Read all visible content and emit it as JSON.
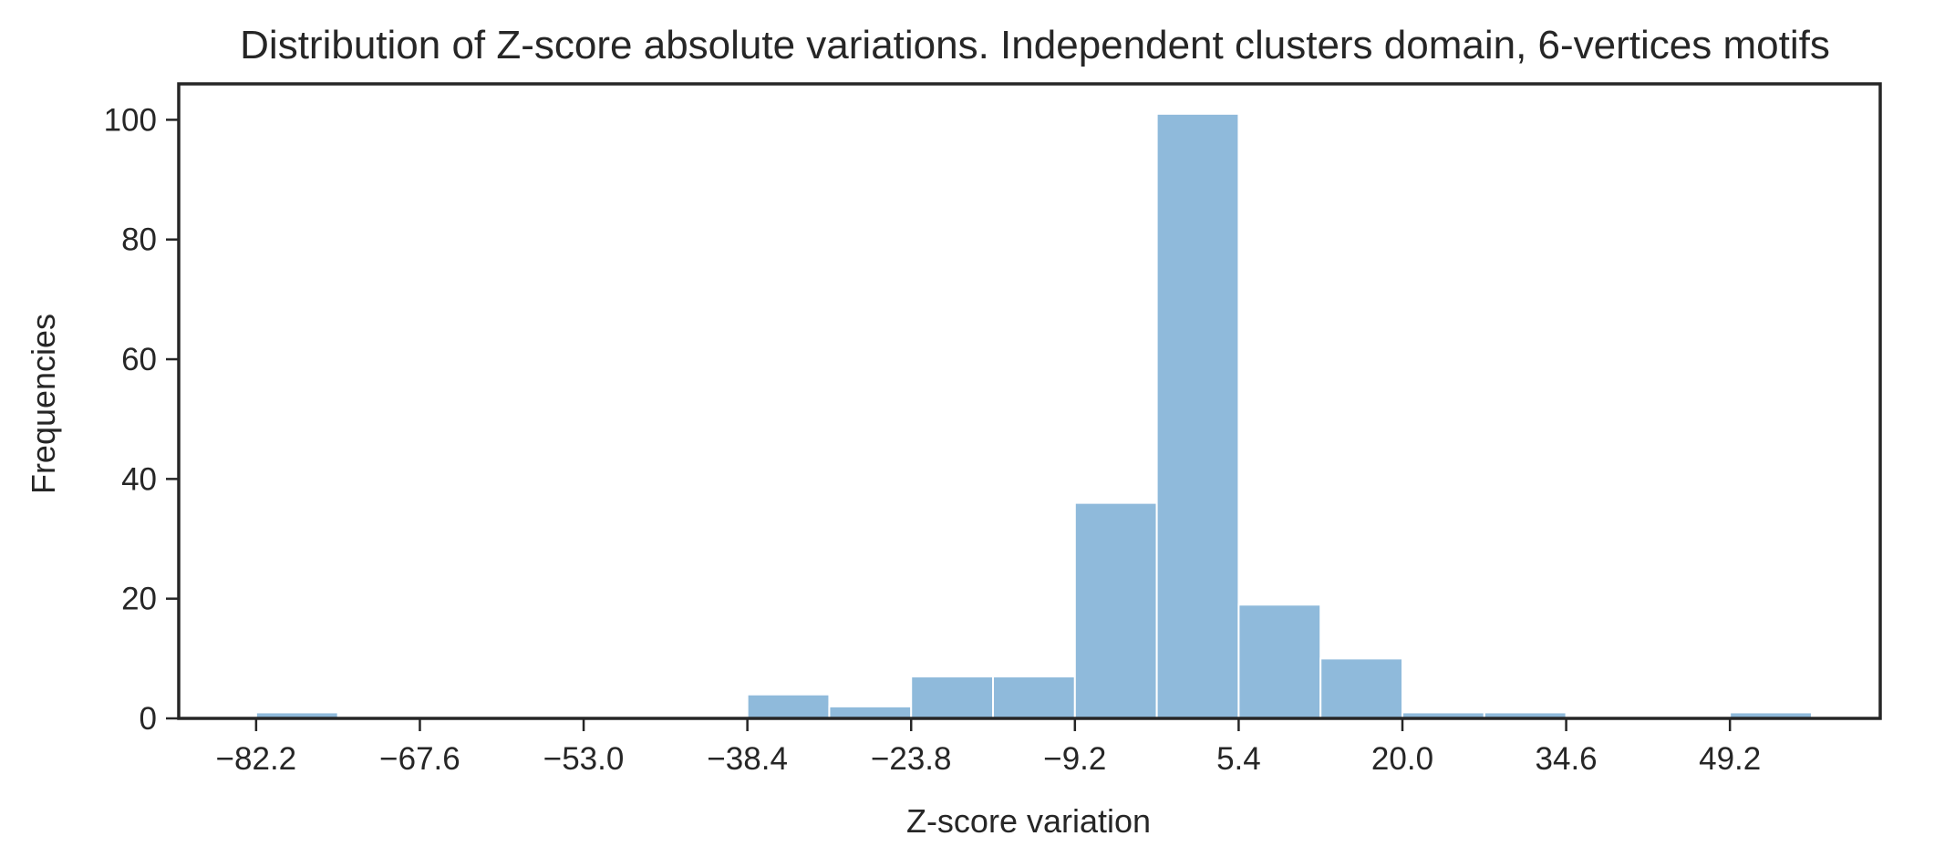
{
  "chart_data": {
    "type": "bar",
    "subtype": "histogram",
    "title": "Distribution of Z-score absolute variations. Independent clusters domain, 6-vertices motifs",
    "xlabel": "Z-score variation",
    "ylabel": "Frequencies",
    "bin_width": 7.3,
    "bins": [
      {
        "x0": -82.2,
        "x1": -74.9,
        "count": 1
      },
      {
        "x0": -74.9,
        "x1": -67.6,
        "count": 0
      },
      {
        "x0": -67.6,
        "x1": -60.3,
        "count": 0
      },
      {
        "x0": -60.3,
        "x1": -53.0,
        "count": 0
      },
      {
        "x0": -53.0,
        "x1": -45.7,
        "count": 0
      },
      {
        "x0": -45.7,
        "x1": -38.4,
        "count": 0
      },
      {
        "x0": -38.4,
        "x1": -31.1,
        "count": 4
      },
      {
        "x0": -31.1,
        "x1": -23.8,
        "count": 2
      },
      {
        "x0": -23.8,
        "x1": -16.5,
        "count": 7
      },
      {
        "x0": -16.5,
        "x1": -9.2,
        "count": 7
      },
      {
        "x0": -9.2,
        "x1": -1.9,
        "count": 36
      },
      {
        "x0": -1.9,
        "x1": 5.4,
        "count": 101
      },
      {
        "x0": 5.4,
        "x1": 12.7,
        "count": 19
      },
      {
        "x0": 12.7,
        "x1": 20.0,
        "count": 10
      },
      {
        "x0": 20.0,
        "x1": 27.3,
        "count": 1
      },
      {
        "x0": 27.3,
        "x1": 34.6,
        "count": 1
      },
      {
        "x0": 34.6,
        "x1": 41.9,
        "count": 0
      },
      {
        "x0": 41.9,
        "x1": 49.2,
        "count": 0
      },
      {
        "x0": 49.2,
        "x1": 56.5,
        "count": 1
      }
    ],
    "xticks": [
      {
        "value": -82.2,
        "label": "−82.2"
      },
      {
        "value": -67.6,
        "label": "−67.6"
      },
      {
        "value": -53.0,
        "label": "−53.0"
      },
      {
        "value": -38.4,
        "label": "−38.4"
      },
      {
        "value": -23.8,
        "label": "−23.8"
      },
      {
        "value": -9.2,
        "label": "−9.2"
      },
      {
        "value": 5.4,
        "label": "5.4"
      },
      {
        "value": 20.0,
        "label": "20.0"
      },
      {
        "value": 34.6,
        "label": "34.6"
      },
      {
        "value": 49.2,
        "label": "49.2"
      }
    ],
    "yticks": [
      {
        "value": 0,
        "label": "0"
      },
      {
        "value": 20,
        "label": "20"
      },
      {
        "value": 40,
        "label": "40"
      },
      {
        "value": 60,
        "label": "60"
      },
      {
        "value": 80,
        "label": "80"
      },
      {
        "value": 100,
        "label": "100"
      }
    ],
    "xlim": [
      -89.1,
      62.6
    ],
    "ylim": [
      0,
      106
    ],
    "grid": false,
    "colors": {
      "bar_fill": "#8fbadb",
      "bar_edge": "#ffffff",
      "axes": "#262626",
      "text": "#262626"
    }
  }
}
